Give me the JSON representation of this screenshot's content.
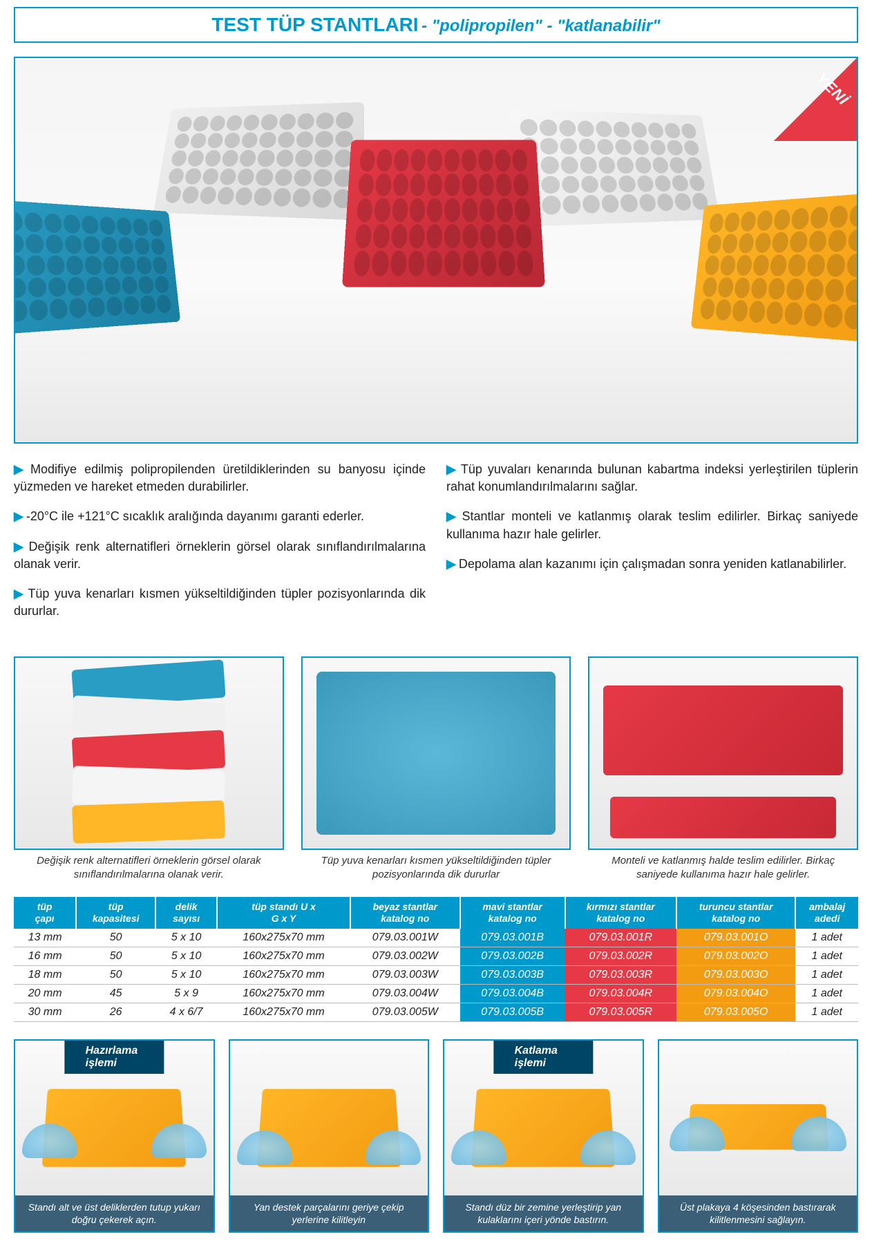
{
  "title": {
    "main": "TEST TÜP STANTLARI",
    "sub": " - \"polipropilen\" - \"katlanabilir\""
  },
  "badge": "YENİ",
  "features_left": [
    "Modifiye edilmiş polipropilenden üretildiklerinden su banyosu içinde yüzmeden ve hareket etmeden durabilirler.",
    "-20°C ile +121°C sıcaklık aralığında dayanımı garanti ederler.",
    "Değişik renk alternatifleri örneklerin görsel olarak sınıflandırılmalarına olanak verir.",
    "Tüp yuva kenarları kısmen yükseltildiğinden tüpler pozisyonlarında dik dururlar."
  ],
  "features_right": [
    "Tüp yuvaları kenarında bulunan kabartma indeksi yerleştirilen tüplerin rahat konumlandırılmalarını sağlar.",
    "Stantlar monteli ve katlanmış olarak teslim edilirler. Birkaç saniyede kullanıma hazır hale gelirler.",
    "Depolama alan kazanımı için çalışmadan sonra yeniden katlanabilirler."
  ],
  "triple_captions": [
    "Değişik renk alternatifleri örneklerin görsel olarak sınıflandırılmalarına olanak verir.",
    "Tüp yuva kenarları kısmen yükseltildiğinden tüpler pozisyonlarında dik dururlar",
    "Monteli ve katlanmış halde teslim edilirler. Birkaç saniyede kullanıma hazır hale gelirler."
  ],
  "table": {
    "headers": [
      "tüp çapı",
      "tüp kapasitesi",
      "delik sayısı",
      "tüp standı U x G x Y",
      "beyaz stantlar katalog no",
      "mavi stantlar katalog no",
      "kırmızı stantlar katalog no",
      "turuncu stantlar katalog no",
      "ambalaj adedi"
    ],
    "col_colors": [
      "c-white",
      "c-white",
      "c-white",
      "c-white",
      "c-white",
      "c-blue",
      "c-red",
      "c-orange",
      "c-white"
    ],
    "rows": [
      [
        "13 mm",
        "50",
        "5 x 10",
        "160x275x70 mm",
        "079.03.001W",
        "079.03.001B",
        "079.03.001R",
        "079.03.001O",
        "1 adet"
      ],
      [
        "16 mm",
        "50",
        "5 x 10",
        "160x275x70 mm",
        "079.03.002W",
        "079.03.002B",
        "079.03.002R",
        "079.03.002O",
        "1 adet"
      ],
      [
        "18 mm",
        "50",
        "5 x 10",
        "160x275x70 mm",
        "079.03.003W",
        "079.03.003B",
        "079.03.003R",
        "079.03.003O",
        "1 adet"
      ],
      [
        "20 mm",
        "45",
        "5 x 9",
        "160x275x70 mm",
        "079.03.004W",
        "079.03.004B",
        "079.03.004R",
        "079.03.004O",
        "1 adet"
      ],
      [
        "30 mm",
        "26",
        "4 x 6/7",
        "160x275x70 mm",
        "079.03.005W",
        "079.03.005B",
        "079.03.005R",
        "079.03.005O",
        "1 adet"
      ]
    ]
  },
  "process": {
    "label_left": "Hazırlama işlemi",
    "label_right": "Katlama işlemi",
    "captions": [
      "Standı alt ve üst deliklerden tutup yukarı doğru çekerek açın.",
      "Yan destek parçalarını geriye çekip yerlerine kilitleyin",
      "Standı düz bir zemine yerleştirip yan kulaklarını içeri yönde bastırın.",
      "Üst plakaya 4 köşesinden bastırarak kilitlenmesini sağlayın."
    ]
  },
  "colors": {
    "primary": "#0099cc",
    "red": "#e63946",
    "orange": "#f39c12",
    "yellow": "#ffb627",
    "darkblue": "#004466"
  }
}
